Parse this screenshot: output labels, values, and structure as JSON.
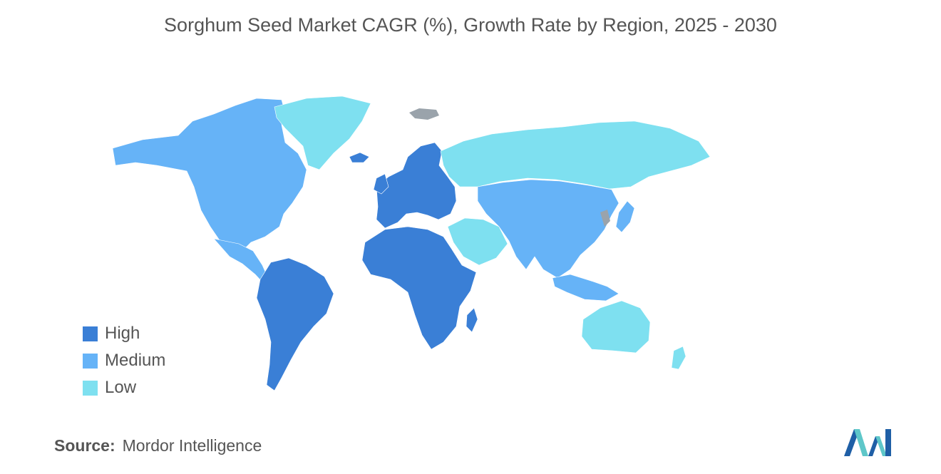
{
  "title": "Sorghum Seed Market CAGR (%), Growth Rate by Region, 2025 - 2030",
  "legend": [
    {
      "label": "High",
      "color": "#3a7fd6"
    },
    {
      "label": "Medium",
      "color": "#66b3f7"
    },
    {
      "label": "Low",
      "color": "#7ee0f0"
    }
  ],
  "source": {
    "label": "Source:",
    "value": "Mordor Intelligence"
  },
  "colors": {
    "nodata": "#9aa3ab",
    "text": "#555555",
    "logo_dark": "#1f5fa6",
    "logo_light": "#5ec7c9"
  },
  "regions": [
    {
      "name": "north-america",
      "category": "Medium"
    },
    {
      "name": "greenland",
      "category": "Low"
    },
    {
      "name": "south-america",
      "category": "High"
    },
    {
      "name": "europe",
      "category": "High"
    },
    {
      "name": "africa",
      "category": "High"
    },
    {
      "name": "middle-east",
      "category": "Low"
    },
    {
      "name": "russia",
      "category": "Low"
    },
    {
      "name": "asia",
      "category": "Medium"
    },
    {
      "name": "southeast-asia",
      "category": "Medium"
    },
    {
      "name": "japan",
      "category": "Medium"
    },
    {
      "name": "australia",
      "category": "Low"
    },
    {
      "name": "new-zealand",
      "category": "Low"
    }
  ]
}
